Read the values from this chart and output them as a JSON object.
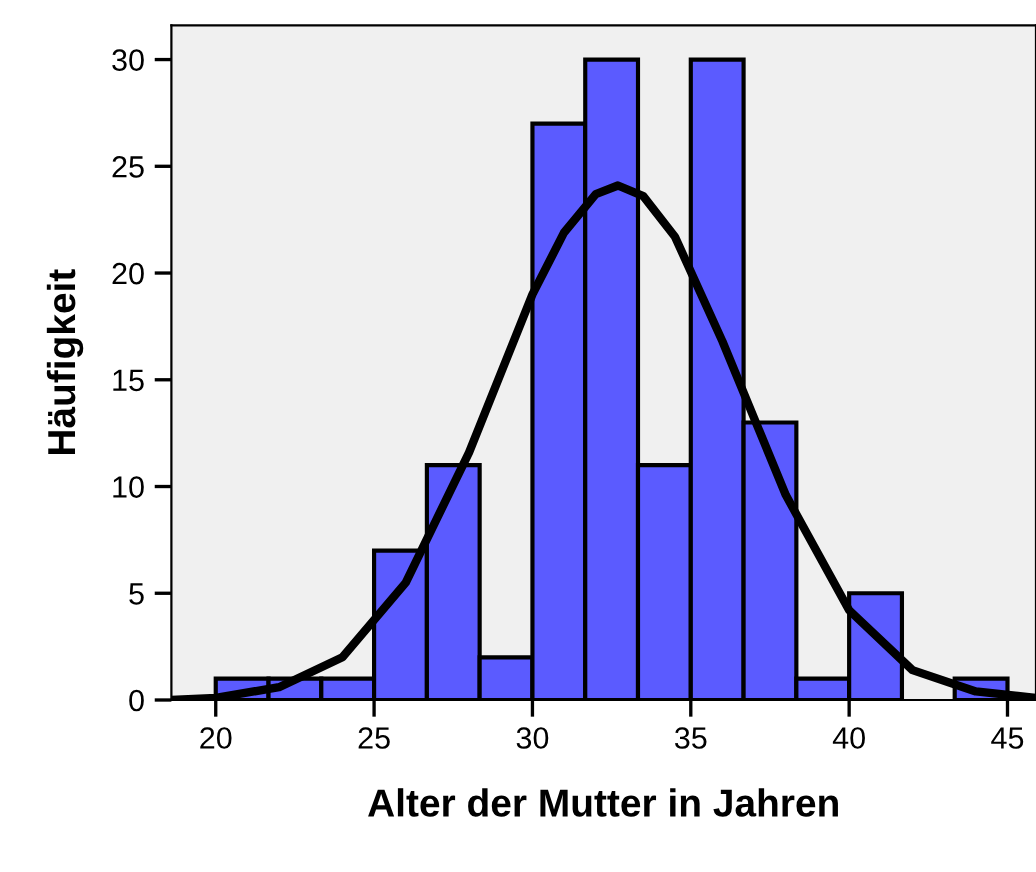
{
  "chart_data": {
    "type": "histogram",
    "xlabel": "Alter der Mutter in Jahren",
    "ylabel": "Häufigkeit",
    "bins": [
      20,
      21.667,
      23.333,
      25,
      26.667,
      28.333,
      30,
      31.667,
      33.333,
      35,
      36.667,
      38.333,
      40,
      41.667,
      43.333,
      45
    ],
    "values": [
      1,
      1,
      1,
      7,
      11,
      2,
      27,
      30,
      11,
      30,
      13,
      1,
      5,
      0,
      1
    ],
    "color": "#5b5bff",
    "series": [
      {
        "type": "line",
        "color": "#000000",
        "x": [
          18.6,
          20,
          22,
          24,
          26,
          28,
          30,
          31,
          32,
          32.7,
          33.5,
          34.5,
          36,
          38,
          40,
          42,
          44,
          45.9
        ],
        "values": [
          0,
          0.1,
          0.6,
          2.0,
          5.5,
          11.6,
          19.0,
          21.9,
          23.7,
          24.1,
          23.6,
          21.7,
          16.8,
          9.6,
          4.2,
          1.4,
          0.4,
          0.1
        ]
      }
    ],
    "xlim": [
      18.6,
      45.9
    ],
    "xticks": [
      20,
      25,
      30,
      35,
      40,
      45
    ],
    "ylim": [
      0,
      31.6
    ],
    "yticks": [
      0,
      5,
      10,
      15,
      20,
      25,
      30
    ],
    "grid": false,
    "legend": false
  }
}
